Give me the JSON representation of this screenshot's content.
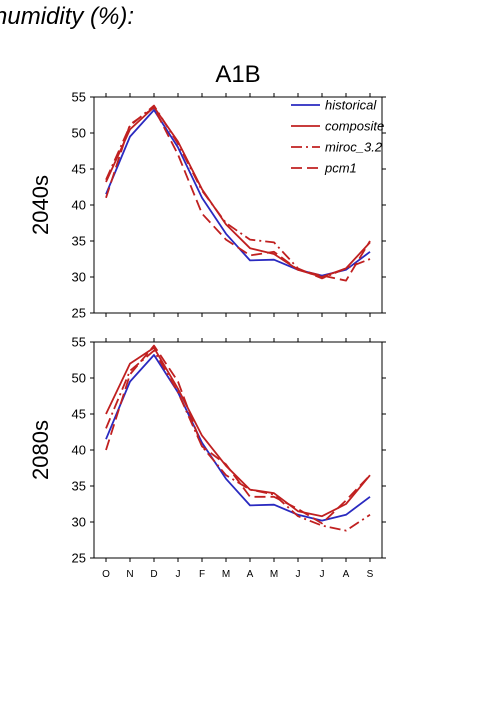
{
  "figure": {
    "title": "humidity (%):",
    "scenario": "A1B"
  },
  "colors": {
    "historical": "#2a2ac0",
    "model": "#c02020"
  },
  "chart_data": [
    {
      "type": "line",
      "panel_label": "2040s",
      "categories": [
        "O",
        "N",
        "D",
        "J",
        "F",
        "M",
        "A",
        "M",
        "J",
        "J",
        "A",
        "S"
      ],
      "ylim": [
        25,
        55
      ],
      "yticks": [
        25,
        30,
        35,
        40,
        45,
        50,
        55
      ],
      "legend_position": "top-right",
      "series": [
        {
          "name": "historical",
          "style": "solid",
          "color": "#2a2ac0",
          "values": [
            41.5,
            49.5,
            53.2,
            48.0,
            41.0,
            36.0,
            32.3,
            32.4,
            31.0,
            30.2,
            31.0,
            33.5
          ]
        },
        {
          "name": "composite",
          "style": "solid",
          "color": "#c02020",
          "values": [
            43.2,
            50.5,
            53.6,
            48.8,
            42.2,
            37.3,
            34.0,
            33.2,
            31.0,
            30.0,
            31.2,
            34.8
          ]
        },
        {
          "name": "miroc_3.2",
          "style": "dashdot",
          "color": "#c02020",
          "values": [
            43.5,
            51.0,
            53.8,
            48.5,
            42.0,
            37.5,
            35.2,
            34.8,
            31.2,
            29.8,
            31.2,
            32.5
          ]
        },
        {
          "name": "pcm1",
          "style": "dash",
          "color": "#c02020",
          "values": [
            41.0,
            51.2,
            53.5,
            47.0,
            38.8,
            35.2,
            33.0,
            33.5,
            31.0,
            30.2,
            29.5,
            35.0
          ]
        }
      ]
    },
    {
      "type": "line",
      "panel_label": "2080s",
      "categories": [
        "O",
        "N",
        "D",
        "J",
        "F",
        "M",
        "A",
        "M",
        "J",
        "J",
        "A",
        "S"
      ],
      "ylim": [
        25,
        55
      ],
      "yticks": [
        25,
        30,
        35,
        40,
        45,
        50,
        55
      ],
      "series": [
        {
          "name": "historical",
          "style": "solid",
          "color": "#2a2ac0",
          "values": [
            41.5,
            49.5,
            53.2,
            48.0,
            41.0,
            36.0,
            32.3,
            32.4,
            31.0,
            30.2,
            31.0,
            33.5
          ]
        },
        {
          "name": "composite",
          "style": "solid",
          "color": "#c02020",
          "values": [
            45.0,
            52.0,
            54.2,
            48.5,
            42.0,
            37.8,
            34.5,
            34.0,
            31.5,
            30.8,
            32.5,
            36.5
          ]
        },
        {
          "name": "miroc_3.2",
          "style": "dashdot",
          "color": "#c02020",
          "values": [
            43.0,
            51.0,
            53.8,
            48.0,
            40.5,
            36.5,
            34.5,
            33.8,
            30.8,
            29.5,
            28.8,
            31.0
          ]
        },
        {
          "name": "pcm1",
          "style": "dash",
          "color": "#c02020",
          "values": [
            40.0,
            50.5,
            54.5,
            49.5,
            40.5,
            38.0,
            33.5,
            33.5,
            31.8,
            29.8,
            33.0,
            36.5
          ]
        }
      ]
    }
  ]
}
